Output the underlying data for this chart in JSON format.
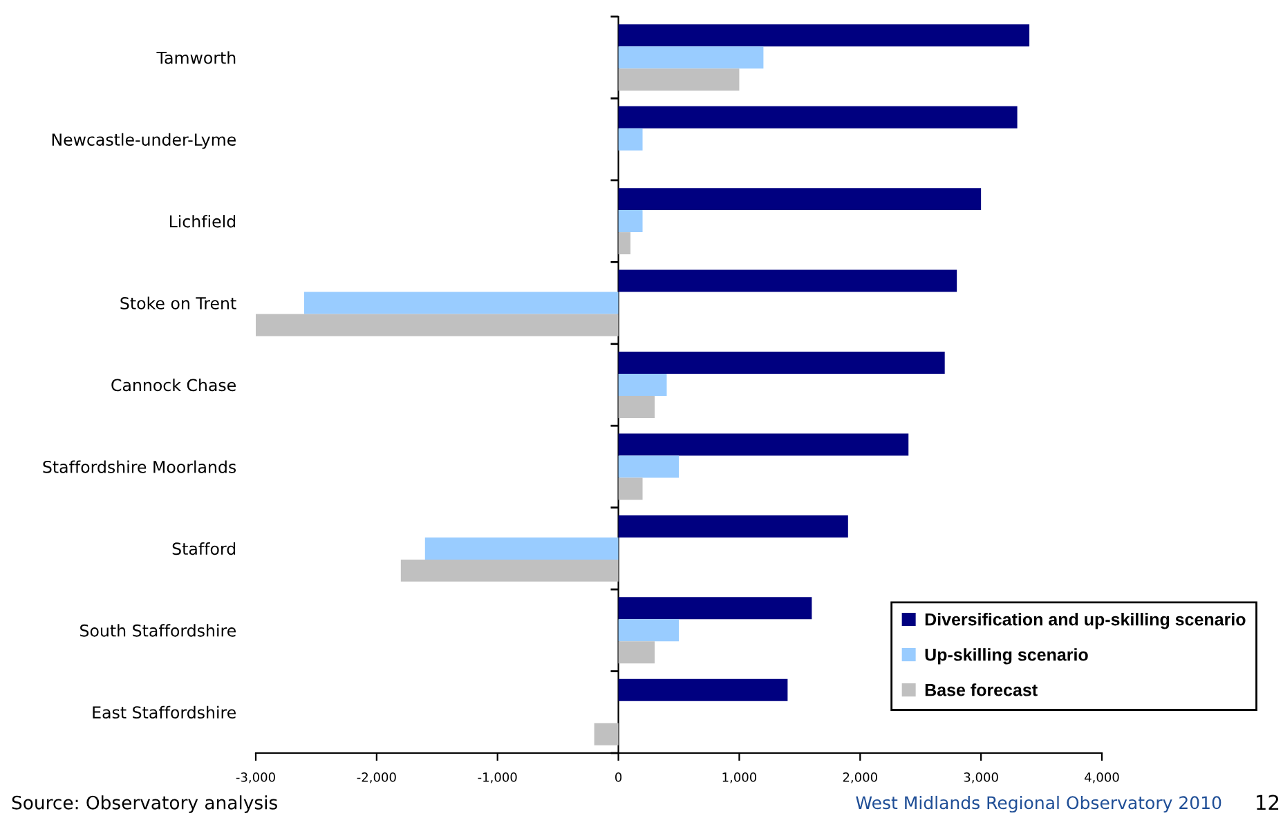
{
  "chart_data": {
    "type": "bar",
    "orientation": "horizontal",
    "categories": [
      "Tamworth",
      "Newcastle-under-Lyme",
      "Lichfield",
      "Stoke on Trent",
      "Cannock Chase",
      "Staffordshire Moorlands",
      "Stafford",
      "South Staffordshire",
      "East Staffordshire"
    ],
    "series": [
      {
        "name": "Diversification and up-skilling scenario",
        "color": "#000080",
        "values": [
          3400,
          3300,
          3000,
          2800,
          2700,
          2400,
          1900,
          1600,
          1400
        ]
      },
      {
        "name": "Up-skilling scenario",
        "color": "#99ccff",
        "values": [
          1200,
          200,
          200,
          -2600,
          400,
          500,
          -1600,
          500,
          0
        ]
      },
      {
        "name": "Base forecast",
        "color": "#c0c0c0",
        "values": [
          1000,
          0,
          100,
          -3000,
          300,
          200,
          -1800,
          300,
          -200
        ]
      }
    ],
    "xlim": [
      -3000,
      4000
    ],
    "xticks": [
      {
        "value": -3000,
        "label": "-3,000"
      },
      {
        "value": -2000,
        "label": "-2,000"
      },
      {
        "value": -1000,
        "label": "-1,000"
      },
      0,
      {
        "value": 1000,
        "label": "1,000"
      },
      {
        "value": 2000,
        "label": "2,000"
      },
      {
        "value": 3000,
        "label": "3,000"
      },
      {
        "value": 4000,
        "label": "4,000"
      }
    ],
    "legend": "bottom right",
    "annotations": [
      "Source: Observatory analysis",
      "West Midlands Regional Observatory 2010",
      "12"
    ]
  }
}
